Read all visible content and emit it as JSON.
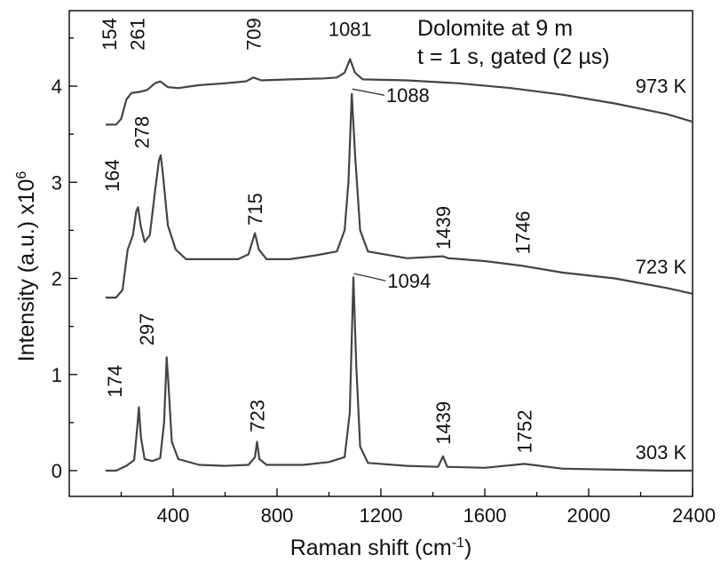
{
  "chart_data": {
    "type": "line",
    "title": "Dolomite at 9 m",
    "subtitle": "t = 1 s, gated (2 µs)",
    "xlabel": "Raman shift (cm-1)",
    "ylabel": "Intensity (a.u.) x10^6",
    "xlim": [
      0,
      2400
    ],
    "ylim": [
      -0.3,
      5.0
    ],
    "xticks": [
      400,
      800,
      1200,
      1600,
      2000,
      2400
    ],
    "xtick_minor": [
      200,
      600,
      1000,
      1400,
      1800,
      2200
    ],
    "yticks": [
      0,
      1,
      2,
      3,
      4
    ],
    "grid": false,
    "series": [
      {
        "name": "973 K",
        "points": [
          [
            140,
            3.6
          ],
          [
            180,
            3.6
          ],
          [
            200,
            3.66
          ],
          [
            220,
            3.86
          ],
          [
            240,
            3.93
          ],
          [
            270,
            3.94
          ],
          [
            300,
            3.96
          ],
          [
            330,
            4.03
          ],
          [
            350,
            4.05
          ],
          [
            380,
            3.99
          ],
          [
            420,
            3.98
          ],
          [
            500,
            4.01
          ],
          [
            600,
            4.03
          ],
          [
            680,
            4.05
          ],
          [
            709,
            4.09
          ],
          [
            740,
            4.06
          ],
          [
            850,
            4.07
          ],
          [
            980,
            4.08
          ],
          [
            1030,
            4.09
          ],
          [
            1060,
            4.14
          ],
          [
            1081,
            4.28
          ],
          [
            1100,
            4.14
          ],
          [
            1130,
            4.07
          ],
          [
            1300,
            4.06
          ],
          [
            1500,
            4.03
          ],
          [
            1700,
            3.98
          ],
          [
            1900,
            3.91
          ],
          [
            2100,
            3.82
          ],
          [
            2300,
            3.71
          ],
          [
            2400,
            3.63
          ]
        ]
      },
      {
        "name": "723 K",
        "points": [
          [
            140,
            1.8
          ],
          [
            180,
            1.8
          ],
          [
            205,
            1.88
          ],
          [
            225,
            2.3
          ],
          [
            245,
            2.45
          ],
          [
            258,
            2.7
          ],
          [
            265,
            2.74
          ],
          [
            275,
            2.55
          ],
          [
            290,
            2.38
          ],
          [
            310,
            2.45
          ],
          [
            330,
            2.9
          ],
          [
            345,
            3.22
          ],
          [
            352,
            3.28
          ],
          [
            360,
            3.1
          ],
          [
            380,
            2.55
          ],
          [
            410,
            2.3
          ],
          [
            450,
            2.2
          ],
          [
            550,
            2.2
          ],
          [
            650,
            2.2
          ],
          [
            690,
            2.25
          ],
          [
            715,
            2.47
          ],
          [
            730,
            2.3
          ],
          [
            760,
            2.2
          ],
          [
            850,
            2.2
          ],
          [
            950,
            2.24
          ],
          [
            1030,
            2.28
          ],
          [
            1060,
            2.5
          ],
          [
            1075,
            3.0
          ],
          [
            1088,
            3.92
          ],
          [
            1100,
            3.3
          ],
          [
            1120,
            2.5
          ],
          [
            1150,
            2.28
          ],
          [
            1300,
            2.21
          ],
          [
            1439,
            2.23
          ],
          [
            1460,
            2.21
          ],
          [
            1600,
            2.18
          ],
          [
            1746,
            2.13
          ],
          [
            1900,
            2.06
          ],
          [
            2100,
            2.0
          ],
          [
            2300,
            1.9
          ],
          [
            2400,
            1.84
          ]
        ]
      },
      {
        "name": "303 K",
        "points": [
          [
            140,
            0.0
          ],
          [
            180,
            0.0
          ],
          [
            220,
            0.05
          ],
          [
            250,
            0.11
          ],
          [
            262,
            0.45
          ],
          [
            268,
            0.66
          ],
          [
            276,
            0.35
          ],
          [
            290,
            0.12
          ],
          [
            320,
            0.1
          ],
          [
            350,
            0.13
          ],
          [
            365,
            0.5
          ],
          [
            375,
            1.18
          ],
          [
            382,
            0.9
          ],
          [
            395,
            0.3
          ],
          [
            420,
            0.12
          ],
          [
            500,
            0.06
          ],
          [
            600,
            0.05
          ],
          [
            690,
            0.06
          ],
          [
            715,
            0.14
          ],
          [
            723,
            0.3
          ],
          [
            732,
            0.12
          ],
          [
            760,
            0.06
          ],
          [
            900,
            0.06
          ],
          [
            1000,
            0.09
          ],
          [
            1060,
            0.14
          ],
          [
            1080,
            0.6
          ],
          [
            1094,
            2.01
          ],
          [
            1105,
            1.1
          ],
          [
            1120,
            0.25
          ],
          [
            1150,
            0.08
          ],
          [
            1300,
            0.05
          ],
          [
            1420,
            0.04
          ],
          [
            1439,
            0.15
          ],
          [
            1455,
            0.04
          ],
          [
            1600,
            0.03
          ],
          [
            1752,
            0.07
          ],
          [
            1900,
            0.02
          ],
          [
            2100,
            0.01
          ],
          [
            2300,
            0.0
          ],
          [
            2400,
            0.0
          ]
        ]
      }
    ],
    "peak_labels": [
      {
        "text": "154",
        "x": 154,
        "y": 4.37
      },
      {
        "text": "261",
        "x": 261,
        "y": 4.37
      },
      {
        "text": "709",
        "x": 709,
        "y": 4.37
      },
      {
        "text": "1081",
        "x": 1081,
        "y": 4.52,
        "horizontal": true
      },
      {
        "text": "1088",
        "x": 1220,
        "y": 3.85,
        "horizontal": true,
        "leader_to": [
          1090,
          3.97
        ]
      },
      {
        "text": "164",
        "x": 164,
        "y": 2.9
      },
      {
        "text": "278",
        "x": 278,
        "y": 3.35
      },
      {
        "text": "715",
        "x": 715,
        "y": 2.55
      },
      {
        "text": "1439",
        "x": 1439,
        "y": 2.3
      },
      {
        "text": "1746",
        "x": 1746,
        "y": 2.25
      },
      {
        "text": "1094",
        "x": 1225,
        "y": 1.92,
        "horizontal": true,
        "leader_to": [
          1096,
          2.05
        ]
      },
      {
        "text": "174",
        "x": 174,
        "y": 0.76
      },
      {
        "text": "297",
        "x": 297,
        "y": 1.3
      },
      {
        "text": "723",
        "x": 723,
        "y": 0.4
      },
      {
        "text": "1439",
        "x": 1439,
        "y": 0.27
      },
      {
        "text": "1752",
        "x": 1752,
        "y": 0.18
      }
    ],
    "curve_labels": [
      {
        "text": "973 K",
        "x": 2180,
        "y": 3.93
      },
      {
        "text": "723 K",
        "x": 2180,
        "y": 2.05
      },
      {
        "text": "303 K",
        "x": 2180,
        "y": 0.12
      }
    ]
  }
}
